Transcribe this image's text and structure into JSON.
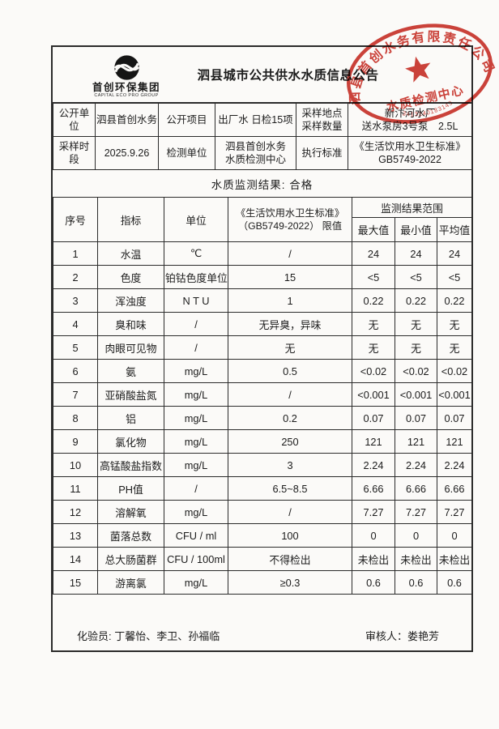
{
  "page": {
    "title": "泗县城市公共供水水质信息公告",
    "paper_color": "#fbfaf8",
    "ink_color": "#1c1c1c",
    "border_color": "#2b2b2b"
  },
  "logo": {
    "icon": "swirl-globe-icon",
    "name": "首创环保集团",
    "subtitle": "CAPITAL ECO PRO GROUP"
  },
  "seal": {
    "color": "#c8291f",
    "ring_text": "泗县首创水务有限责任公司",
    "star": "star-icon",
    "center_text": "水质检测中心",
    "code": "3413240183143"
  },
  "info": {
    "open_unit_label": "公开单位",
    "open_unit_value": "泗县首创水务",
    "open_item_label": "公开项目",
    "open_item_value": "出厂水 日检15项",
    "sample_label_line1": "采样地点",
    "sample_label_line2": "采样数量",
    "sample_value_line1": "新汴河水厂",
    "sample_value_line2": "送水泵房3号泵　2.5L",
    "period_label": "采样时段",
    "period_value": "2025.9.26",
    "lab_label": "检测单位",
    "lab_value_line1": "泗县首创水务",
    "lab_value_line2": "水质检测中心",
    "standard_label": "执行标准",
    "standard_value_line1": "《生活饮用水卫生标准》",
    "standard_value_line2": "GB5749-2022"
  },
  "result_line": "水质监测结果: 合格",
  "table": {
    "headers": {
      "no": "序号",
      "indicator": "指标",
      "unit": "单位",
      "limit_line1": "《生活饮用水卫生标准》",
      "limit_line2": "（GB5749-2022） 限值",
      "range_group": "监测结果范围",
      "max": "最大值",
      "min": "最小值",
      "avg": "平均值"
    },
    "rows": [
      {
        "no": "1",
        "indicator": "水温",
        "unit": "℃",
        "limit": "/",
        "max": "24",
        "min": "24",
        "avg": "24"
      },
      {
        "no": "2",
        "indicator": "色度",
        "unit": "铂钴色度单位",
        "limit": "15",
        "max": "<5",
        "min": "<5",
        "avg": "<5"
      },
      {
        "no": "3",
        "indicator": "浑浊度",
        "unit": "N T U",
        "limit": "1",
        "max": "0.22",
        "min": "0.22",
        "avg": "0.22"
      },
      {
        "no": "4",
        "indicator": "臭和味",
        "unit": "/",
        "limit": "无异臭，异味",
        "max": "无",
        "min": "无",
        "avg": "无"
      },
      {
        "no": "5",
        "indicator": "肉眼可见物",
        "unit": "/",
        "limit": "无",
        "max": "无",
        "min": "无",
        "avg": "无"
      },
      {
        "no": "6",
        "indicator": "氨",
        "unit": "mg/L",
        "limit": "0.5",
        "max": "<0.02",
        "min": "<0.02",
        "avg": "<0.02"
      },
      {
        "no": "7",
        "indicator": "亚硝酸盐氮",
        "unit": "mg/L",
        "limit": "/",
        "max": "<0.001",
        "min": "<0.001",
        "avg": "<0.001"
      },
      {
        "no": "8",
        "indicator": "铝",
        "unit": "mg/L",
        "limit": "0.2",
        "max": "0.07",
        "min": "0.07",
        "avg": "0.07"
      },
      {
        "no": "9",
        "indicator": "氯化物",
        "unit": "mg/L",
        "limit": "250",
        "max": "121",
        "min": "121",
        "avg": "121"
      },
      {
        "no": "10",
        "indicator": "高锰酸盐指数",
        "unit": "mg/L",
        "limit": "3",
        "max": "2.24",
        "min": "2.24",
        "avg": "2.24"
      },
      {
        "no": "11",
        "indicator": "PH值",
        "unit": "/",
        "limit": "6.5~8.5",
        "max": "6.66",
        "min": "6.66",
        "avg": "6.66"
      },
      {
        "no": "12",
        "indicator": "溶解氧",
        "unit": "mg/L",
        "limit": "/",
        "max": "7.27",
        "min": "7.27",
        "avg": "7.27"
      },
      {
        "no": "13",
        "indicator": "菌落总数",
        "unit": "CFU / ml",
        "limit": "100",
        "max": "0",
        "min": "0",
        "avg": "0"
      },
      {
        "no": "14",
        "indicator": "总大肠菌群",
        "unit": "CFU / 100ml",
        "limit": "不得检出",
        "max": "未检出",
        "min": "未检出",
        "avg": "未检出"
      },
      {
        "no": "15",
        "indicator": "游离氯",
        "unit": "mg/L",
        "limit": "≥0.3",
        "max": "0.6",
        "min": "0.6",
        "avg": "0.6"
      }
    ]
  },
  "footer": {
    "left": "化验员: 丁馨怡、李卫、孙福临",
    "right": "审核人：娄艳芳"
  }
}
